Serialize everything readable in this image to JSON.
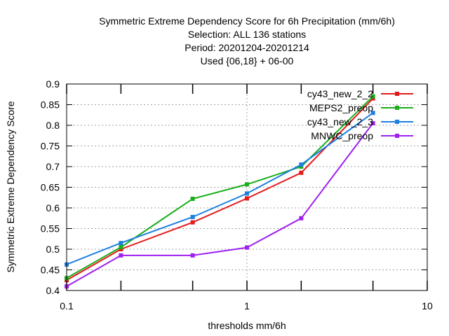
{
  "chart_data": {
    "type": "line",
    "title_lines": [
      "Symmetric Extreme Dependency Score  for 6h Precipitation (mm/6h)",
      "Selection: ALL    136 stations",
      "Period: 20201204-20201214",
      "Used {06,18} + 06-00"
    ],
    "xlabel": "thresholds mm/6h",
    "ylabel": "Symmetric Extreme Dependency Score",
    "x_scale": "log",
    "xlim": [
      0.1,
      10
    ],
    "ylim": [
      0.4,
      0.9
    ],
    "x_ticks": [
      0.1,
      1,
      10
    ],
    "x_tick_labels": [
      "0.1",
      "1",
      "10"
    ],
    "y_ticks": [
      0.4,
      0.45,
      0.5,
      0.55,
      0.6,
      0.65,
      0.7,
      0.75,
      0.8,
      0.85,
      0.9
    ],
    "y_tick_labels": [
      "0.4",
      "0.45",
      "0.5",
      "0.55",
      "0.6",
      "0.65",
      "0.7",
      "0.75",
      "0.8",
      "0.85",
      "0.9"
    ],
    "grid": true,
    "legend_position": "top-right",
    "x": [
      0.1,
      0.2,
      0.5,
      1,
      2,
      5
    ],
    "series": [
      {
        "name": "cy43_new_2_2",
        "color": "#e41a1c",
        "values": [
          0.425,
          0.5,
          0.565,
          0.623,
          0.685,
          0.865
        ]
      },
      {
        "name": "MEPS2_preop",
        "color": "#1aae1a",
        "values": [
          0.43,
          0.505,
          0.622,
          0.657,
          0.7,
          0.87
        ]
      },
      {
        "name": "cy43_new_2_3",
        "color": "#1e7fe0",
        "values": [
          0.463,
          0.515,
          0.578,
          0.635,
          0.705,
          0.83
        ]
      },
      {
        "name": "MNWC_preop",
        "color": "#a020f0",
        "values": [
          0.41,
          0.485,
          0.485,
          0.504,
          0.575,
          0.805
        ]
      }
    ]
  }
}
